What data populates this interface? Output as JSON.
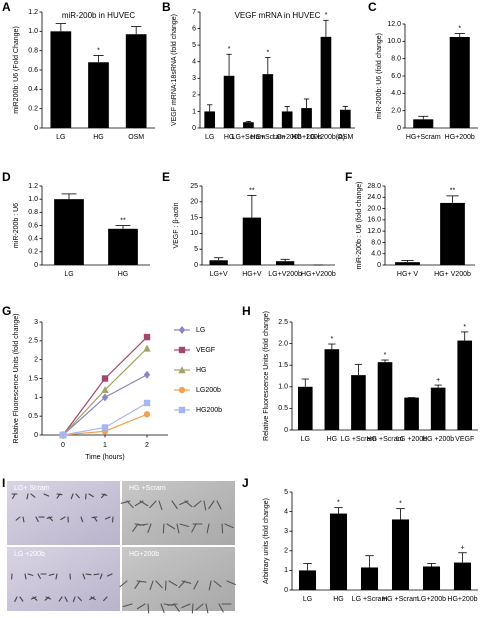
{
  "chart_data": [
    {
      "type": "bar",
      "panel": "A",
      "title": "miR-200b in HUVEC",
      "y_label": "miR200b: U6 (Fold Change)",
      "categories": [
        "LG",
        "HG",
        "OSM"
      ],
      "values": [
        1.0,
        0.68,
        0.97
      ],
      "errors": [
        0.08,
        0.07,
        0.08
      ],
      "significance": [
        null,
        "*",
        null
      ],
      "color": "#000000",
      "ylim": [
        0,
        1.2
      ],
      "yticks": [
        0,
        0.2,
        0.4,
        0.6,
        0.8,
        {
          "value": 1,
          "label": "1.0"
        },
        1.2
      ]
    },
    {
      "type": "bar",
      "panel": "B",
      "title": "VEGF mRNA in HUVEC",
      "y_label": "VEGF mRNA:18sRNA (fold change)",
      "categories": [
        "LG",
        "HG",
        "LG+Scram",
        "HG+Scram",
        "LG+200b",
        "HG+200b",
        "LG+200b(A)",
        "OSM"
      ],
      "values": [
        1.0,
        3.15,
        0.35,
        3.25,
        1.0,
        1.2,
        5.5,
        1.1
      ],
      "errors": [
        0.4,
        1.3,
        0.05,
        1.0,
        0.3,
        0.55,
        1.0,
        0.2
      ],
      "significance": [
        null,
        "*",
        null,
        "*",
        null,
        null,
        "*",
        null
      ],
      "color": "#000000",
      "ylim": [
        0,
        7
      ],
      "yticks": [
        0,
        1,
        2,
        3,
        4,
        5,
        6,
        7
      ]
    },
    {
      "type": "bar",
      "panel": "C",
      "y_label": "miR-200b: U6 (fold change)",
      "categories": [
        "HG+Scram",
        "HG+200b"
      ],
      "values": [
        1.0,
        10.5
      ],
      "errors": [
        0.35,
        0.4
      ],
      "significance": [
        null,
        "*"
      ],
      "color": "#000000",
      "ylim": [
        0,
        12
      ],
      "yticks": [
        0,
        {
          "value": 2,
          "label": "2.0"
        },
        {
          "value": 4,
          "label": "4.0"
        },
        {
          "value": 6,
          "label": "6.0"
        },
        {
          "value": 8,
          "label": "8.0"
        },
        {
          "value": 10,
          "label": "10.0"
        },
        {
          "value": 12,
          "label": "12.0"
        }
      ]
    },
    {
      "type": "bar",
      "panel": "D",
      "y_label": "miR-200b : U6",
      "categories": [
        "LG",
        "HG"
      ],
      "values": [
        1.0,
        0.55
      ],
      "errors": [
        0.08,
        0.05
      ],
      "significance": [
        null,
        "**"
      ],
      "color": "#000000",
      "ylim": [
        0,
        1.2
      ],
      "yticks": [
        0,
        0.2,
        0.4,
        0.6,
        0.8,
        {
          "value": 1,
          "label": "1.0"
        },
        1.2
      ]
    },
    {
      "type": "bar",
      "panel": "E",
      "y_label": "VEGF : β-actin",
      "categories": [
        "LG+V",
        "HG+V",
        "LG+V200b",
        "HG+V200b"
      ],
      "values": [
        1.5,
        15,
        1.2,
        0
      ],
      "errors": [
        0.8,
        7,
        0.6,
        0
      ],
      "significance": [
        null,
        "**",
        null,
        null
      ],
      "color": "#000000",
      "ylim": [
        0,
        25
      ],
      "yticks": [
        0,
        5,
        10,
        15,
        20,
        25
      ]
    },
    {
      "type": "bar",
      "panel": "F",
      "y_label": "miR-200b : U6 (fold change)",
      "categories": [
        "HG+ V",
        "HG+ V200b"
      ],
      "values": [
        1.0,
        22
      ],
      "errors": [
        0.6,
        2.5
      ],
      "significance": [
        null,
        "**"
      ],
      "color": "#000000",
      "ylim": [
        0,
        28
      ],
      "yticks": [
        0,
        {
          "value": 4,
          "label": "4.0"
        },
        {
          "value": 8,
          "label": "8.0"
        },
        {
          "value": 12,
          "label": "12.0"
        },
        {
          "value": 16,
          "label": "16.0"
        },
        {
          "value": 20,
          "label": "20.0"
        },
        {
          "value": 24,
          "label": "24.0"
        },
        {
          "value": 28,
          "label": "28.0"
        }
      ]
    },
    {
      "type": "line",
      "panel": "G",
      "x_label": "Time (hours)",
      "y_label": "Relative Fluorescence Units (fold change)",
      "x": [
        0,
        1,
        2
      ],
      "xlim": [
        -0.5,
        2.5
      ],
      "xticks": [
        0,
        1,
        2
      ],
      "ylim": [
        0,
        3
      ],
      "yticks": [
        0,
        0.5,
        1,
        1.5,
        2,
        2.5,
        3
      ],
      "legend": "right",
      "series": [
        {
          "name": "LG",
          "color": "#8a85c4",
          "marker": "diamond",
          "values": [
            0,
            1.0,
            1.6
          ]
        },
        {
          "name": "VEGF",
          "color": "#a3456e",
          "marker": "square",
          "values": [
            0,
            1.5,
            2.6
          ]
        },
        {
          "name": "HG",
          "color": "#a3a365",
          "marker": "triangle",
          "values": [
            0,
            1.2,
            2.3
          ]
        },
        {
          "name": "LG200b",
          "color": "#f2a253",
          "marker": "circle",
          "values": [
            0,
            0.1,
            0.55
          ]
        },
        {
          "name": "HG200b",
          "color": "#a6b6f2",
          "marker": "square",
          "values": [
            0,
            0.2,
            0.85
          ]
        }
      ]
    },
    {
      "type": "bar",
      "panel": "H",
      "y_label": "Relative Fluorescence Units (fold change)",
      "categories": [
        "LG",
        "HG",
        "LG +Scram",
        "HG +Scram",
        "LG +200b",
        "HG +200b",
        "VEGF"
      ],
      "values": [
        1.0,
        1.87,
        1.27,
        1.57,
        0.75,
        0.98,
        2.07
      ],
      "errors": [
        0.18,
        0.12,
        0.25,
        0.05,
        0,
        0.06,
        0.2
      ],
      "significance": [
        null,
        "*",
        null,
        "*",
        null,
        "+",
        "*"
      ],
      "color": "#000000",
      "ylim": [
        0,
        2.5
      ],
      "yticks": [
        0,
        0.5,
        {
          "value": 1,
          "label": "1.0"
        },
        1.5,
        {
          "value": 2,
          "label": "2.0"
        },
        2.5
      ]
    },
    {
      "type": "image",
      "panel": "I",
      "labels": [
        "LG+ Scram",
        "HG +Scram",
        "LG +200b",
        "HG+200b"
      ]
    },
    {
      "type": "bar",
      "panel": "J",
      "y_label": "Arbitrary units (fold change)",
      "categories": [
        "LG",
        "HG",
        "LG +Scram",
        "HG +Scram",
        "LG+200b",
        "HG+200b"
      ],
      "values": [
        1.0,
        3.9,
        1.15,
        3.6,
        1.2,
        1.4
      ],
      "errors": [
        0.35,
        0.3,
        0.6,
        0.55,
        0.15,
        0.5
      ],
      "significance": [
        null,
        "*",
        null,
        "*",
        null,
        "+"
      ],
      "color": "#000000",
      "ylim": [
        0,
        5
      ],
      "yticks": [
        0,
        1,
        2,
        3,
        4,
        5
      ]
    }
  ]
}
